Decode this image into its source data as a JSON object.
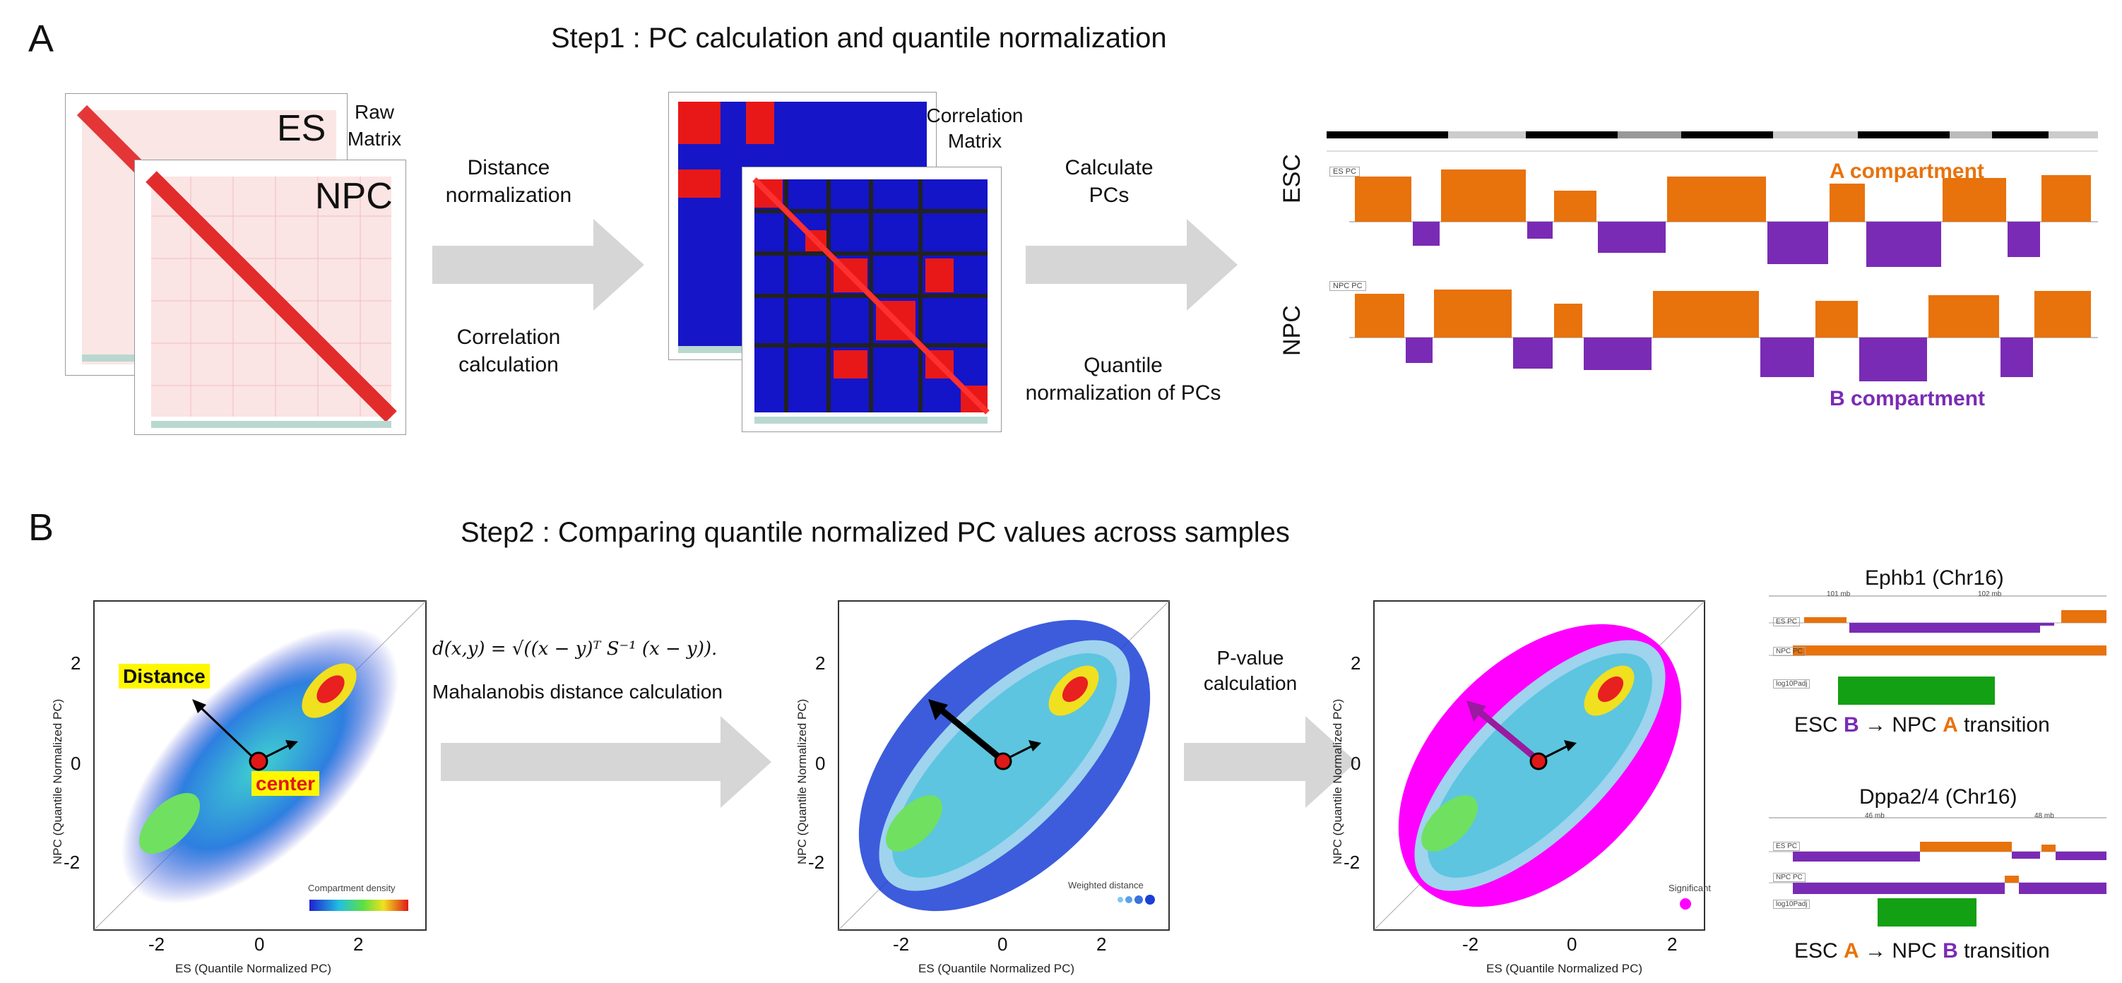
{
  "panel_a": {
    "letter": "A",
    "title": "Step1 : PC calculation and quantile normalization",
    "raw_matrix_label": "Raw Matrix",
    "es_label": "ES",
    "npc_label": "NPC",
    "distance_norm": "Distance normalization",
    "correlation_calc": "Correlation calculation",
    "correlation_matrix_label": "Correlation Matrix",
    "calculate_pcs": "Calculate PCs",
    "quantile_norm_pcs": "Quantile normalization of PCs",
    "track_esc": "ESC",
    "track_npc": "NPC",
    "a_compartment": "A compartment",
    "b_compartment": "B compartment",
    "es_pc_tag": "ES PC",
    "npc_pc_tag": "NPC PC"
  },
  "panel_b": {
    "letter": "B",
    "title": "Step2 : Comparing quantile normalized PC values across samples",
    "formula": "d(x,y) = √((x − y)ᵀ S⁻¹ (x − y)).",
    "mahalanobis": "Mahalanobis distance calculation",
    "pvalue_calc": "P-value calculation",
    "distance_label": "Distance",
    "center_label": "center",
    "x_axis": "ES (Quantile Normalized PC)",
    "y_axis": "NPC (Quantile Normalized PC)",
    "legend_density": "Compartment density",
    "legend_weighted": "Weighted distance",
    "legend_significant": "Significant",
    "ticks": [
      "-2",
      "0",
      "2"
    ],
    "ephb1_title": "Ephb1 (Chr16)",
    "ephb1_transition_pre": "ESC ",
    "ephb1_transition_from": "B",
    "ephb1_transition_mid": " → NPC ",
    "ephb1_transition_to": "A",
    "ephb1_transition_post": " transition",
    "dppa_title": "Dppa2/4 (Chr16)",
    "dppa_transition_pre": "ESC ",
    "dppa_transition_from": "A",
    "dppa_transition_mid": " → NPC ",
    "dppa_transition_to": "B",
    "dppa_transition_post": " transition",
    "track_tags": [
      "ES PC",
      "NPC PC",
      "log10Padj"
    ],
    "ephb1_scale": [
      "101 mb",
      "102 mb"
    ],
    "dppa_scale": [
      "46 mb",
      "48 mb"
    ]
  },
  "colors": {
    "a_orange": "#e8720c",
    "b_purple": "#7a2bb5",
    "significant_magenta": "#ff00ff",
    "weighted_blue": "#1a3fd6",
    "padj_green": "#14a014",
    "hic_red": "#e02020",
    "corr_blue": "#1010e0"
  }
}
